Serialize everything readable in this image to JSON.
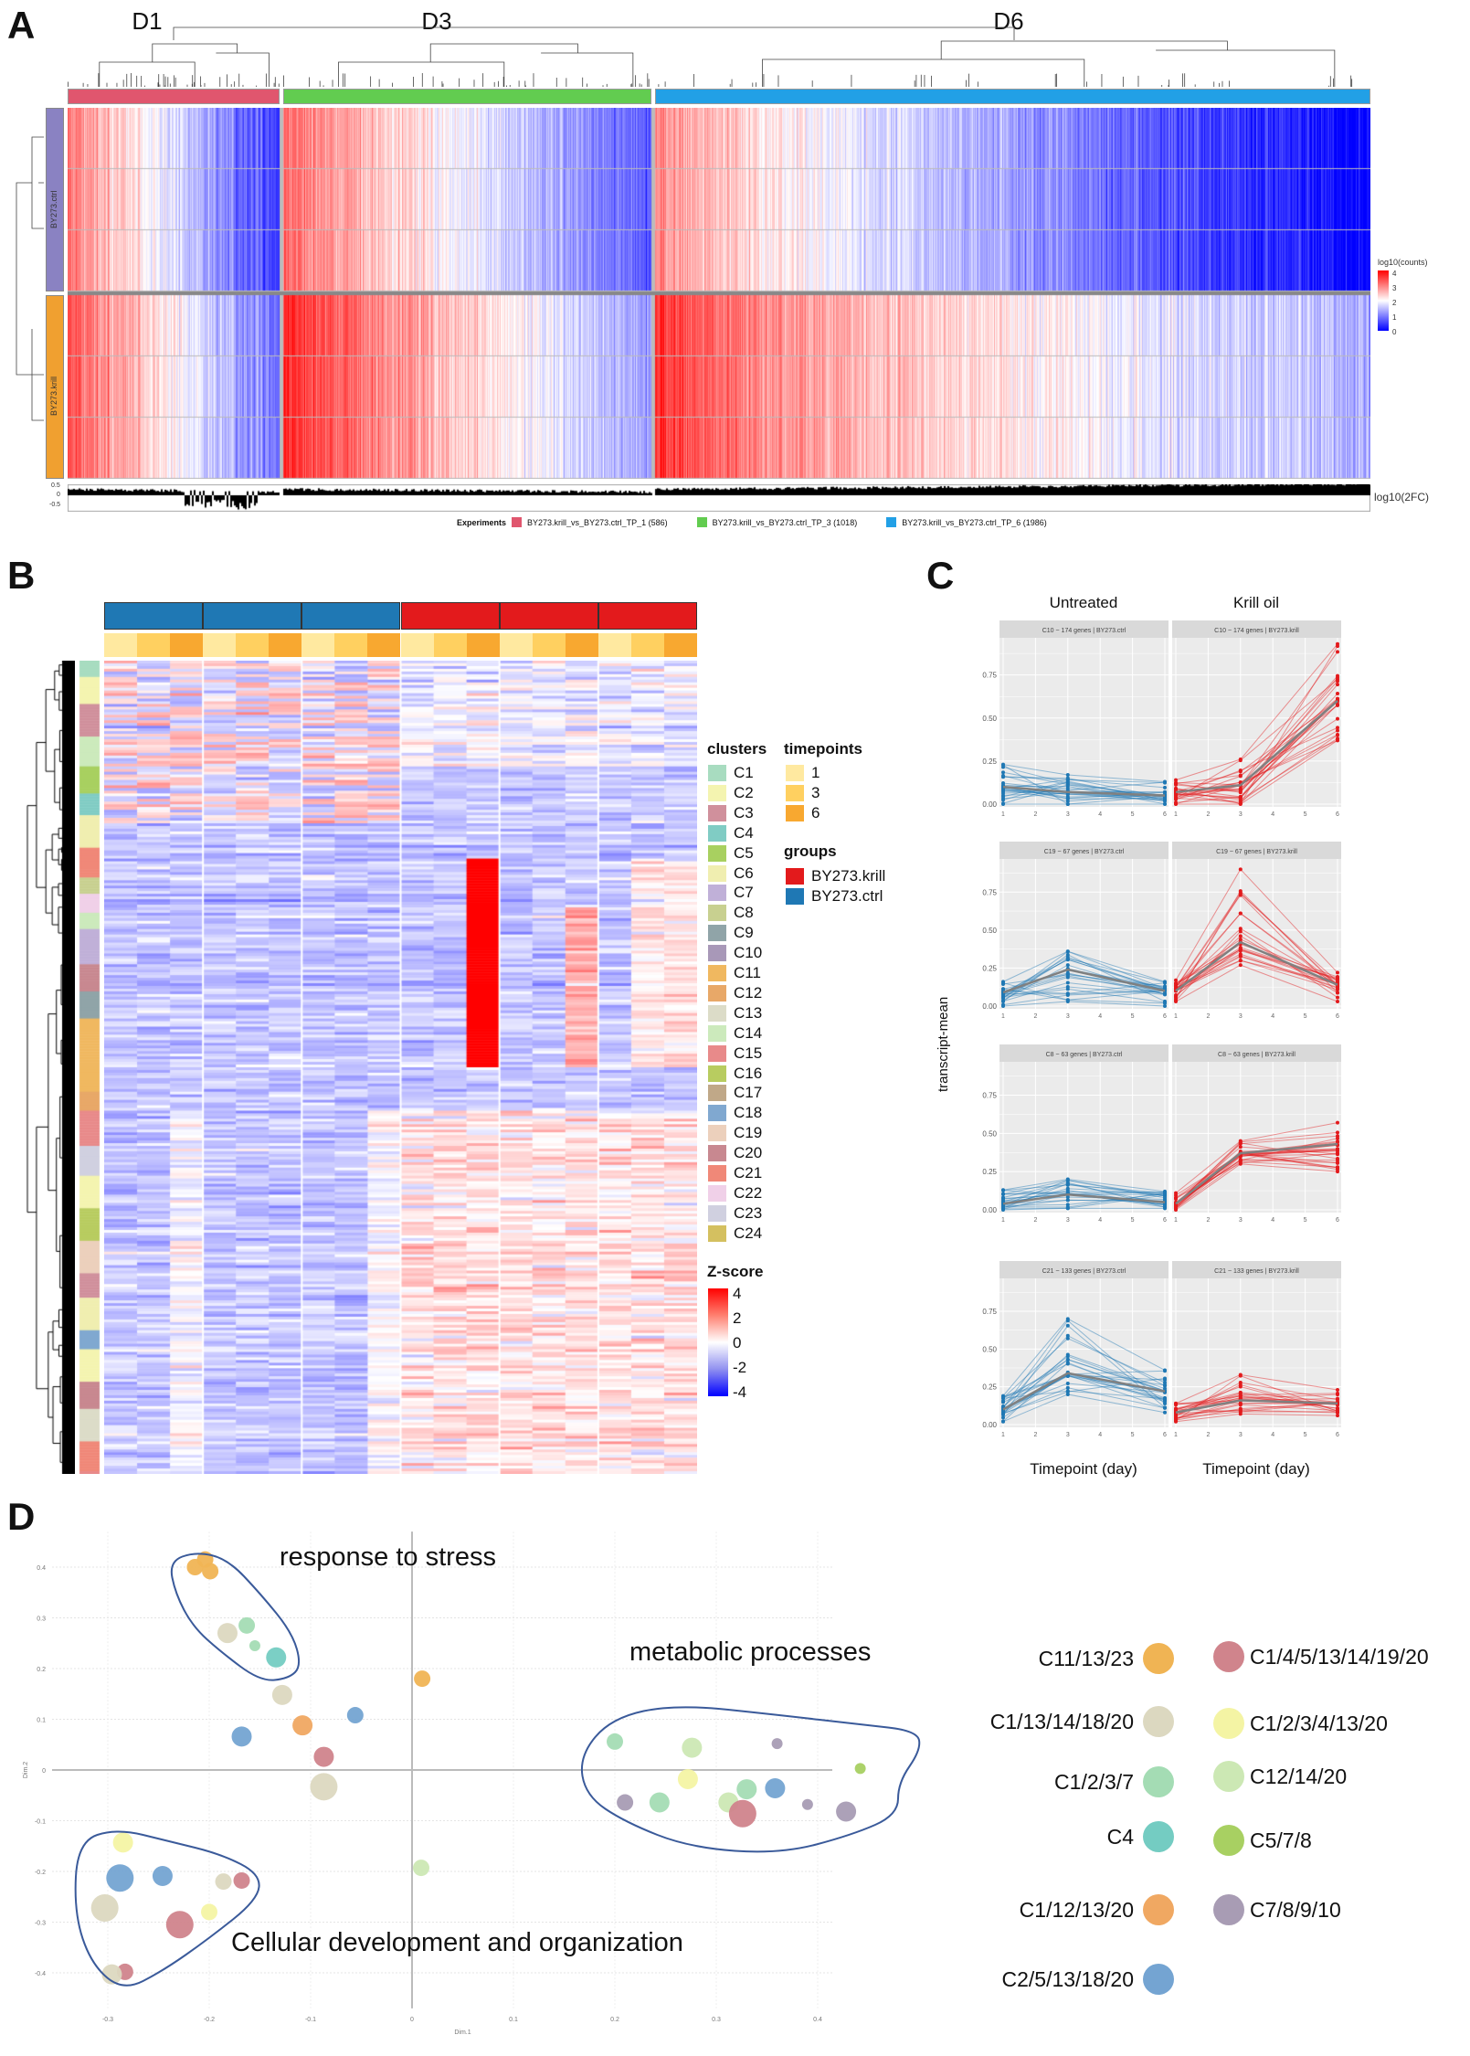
{
  "panel_labels": {
    "a": "A",
    "b": "B",
    "c": "C",
    "d": "D"
  },
  "panelA": {
    "column_groups": [
      {
        "label": "D1",
        "color": "#e0566e"
      },
      {
        "label": "D3",
        "color": "#62cc50"
      },
      {
        "label": "D6",
        "color": "#22a0e6"
      }
    ],
    "row_groups": [
      {
        "label": "BY273.ctrl",
        "color": "#8a82c2"
      },
      {
        "label": "BY273.krill",
        "color": "#f0a030"
      }
    ],
    "colorbar": {
      "title": "log10(counts)",
      "ticks": [
        "4",
        "3",
        "2",
        "1",
        "0"
      ]
    },
    "barplot": {
      "label": "log10(2FC)",
      "ticks": [
        "0.5",
        "0",
        "-0.5"
      ]
    },
    "legend": {
      "title": "Experiments",
      "items": [
        {
          "label": "BY273.krill_vs_BY273.ctrl_TP_1 (586)",
          "color": "#e0566e"
        },
        {
          "label": "BY273.krill_vs_BY273.ctrl_TP_3 (1018)",
          "color": "#62cc50"
        },
        {
          "label": "BY273.krill_vs_BY273.ctrl_TP_6 (1986)",
          "color": "#22a0e6"
        }
      ]
    }
  },
  "panelB": {
    "legend": {
      "clusters_title": "clusters",
      "clusters": [
        {
          "label": "C1",
          "color": "#a8dcc0"
        },
        {
          "label": "C2",
          "color": "#f4f4b0"
        },
        {
          "label": "C3",
          "color": "#d0909c"
        },
        {
          "label": "C4",
          "color": "#80ccc4"
        },
        {
          "label": "C5",
          "color": "#a8d060"
        },
        {
          "label": "C6",
          "color": "#f0eeb0"
        },
        {
          "label": "C7",
          "color": "#c0b0d8"
        },
        {
          "label": "C8",
          "color": "#c8d090"
        },
        {
          "label": "C9",
          "color": "#90a4a8"
        },
        {
          "label": "C10",
          "color": "#a898b8"
        },
        {
          "label": "C11",
          "color": "#f0b860"
        },
        {
          "label": "C12",
          "color": "#e8a868"
        },
        {
          "label": "C13",
          "color": "#dcdcc8"
        },
        {
          "label": "C14",
          "color": "#cceabc"
        },
        {
          "label": "C15",
          "color": "#e88a8a"
        },
        {
          "label": "C16",
          "color": "#b8cc60"
        },
        {
          "label": "C17",
          "color": "#c0a888"
        },
        {
          "label": "C18",
          "color": "#80a8d0"
        },
        {
          "label": "C19",
          "color": "#ecd0bc"
        },
        {
          "label": "C20",
          "color": "#c88890"
        },
        {
          "label": "C21",
          "color": "#f08878"
        },
        {
          "label": "C22",
          "color": "#f0d0e8"
        },
        {
          "label": "C23",
          "color": "#d0d0e0"
        },
        {
          "label": "C24",
          "color": "#d4c060"
        }
      ],
      "timepoints_title": "timepoints",
      "timepoints": [
        {
          "label": "1",
          "color": "#ffe9a0"
        },
        {
          "label": "3",
          "color": "#ffd060"
        },
        {
          "label": "6",
          "color": "#f8a830"
        }
      ],
      "groups_title": "groups",
      "groups": [
        {
          "label": "BY273.krill",
          "color": "#e31a1c"
        },
        {
          "label": "BY273.ctrl",
          "color": "#1f78b4"
        }
      ],
      "zscore_title": "Z-score",
      "zscore_ticks": [
        "4",
        "2",
        "0",
        "-2",
        "-4"
      ]
    }
  },
  "panelC": {
    "col_titles": [
      "Untreated",
      "Krill oil"
    ],
    "ylabel": "transcript-mean",
    "xlabel": "Timepoint (day)",
    "yticks": [
      "0.00",
      "0.25",
      "0.50",
      "0.75"
    ],
    "xticks": [
      "1",
      "2",
      "3",
      "4",
      "5",
      "6"
    ]
  },
  "panelD": {
    "annotations": [
      "response to stress",
      "metabolic processes",
      "Cellular development and organization"
    ],
    "xlabel": "Dim.1",
    "ylabel": "Dim.2",
    "xticks": [
      "-0.3",
      "-0.2",
      "-0.1",
      "0",
      "0.1",
      "0.2",
      "0.3",
      "0.4"
    ],
    "yticks": [
      "0.4",
      "0.3",
      "0.2",
      "0.1",
      "0",
      "-0.1",
      "-0.2",
      "-0.3",
      "-0.4"
    ],
    "legend_left": [
      {
        "label": "C11/13/23",
        "color": "#f0b454"
      },
      {
        "label": "C1/13/14/18/20",
        "color": "#dcd8c0"
      },
      {
        "label": "C1/2/3/7",
        "color": "#a4dcb4"
      },
      {
        "label": "C4",
        "color": "#74ccc2"
      },
      {
        "label": "C1/12/13/20",
        "color": "#f0a862"
      },
      {
        "label": "C2/5/13/18/20",
        "color": "#74a4d2"
      }
    ],
    "legend_right": [
      {
        "label": "C1/4/5/13/14/19/20",
        "color": "#d0848c"
      },
      {
        "label": "C1/2/3/4/13/20",
        "color": "#f4f4a4"
      },
      {
        "label": "C12/14/20",
        "color": "#cce8b4"
      },
      {
        "label": "C5/7/8",
        "color": "#a8d062"
      },
      {
        "label": "C7/8/9/10",
        "color": "#a89cb4"
      }
    ]
  },
  "chart_data": [
    {
      "panel": "A",
      "type": "heatmap",
      "column_groups": [
        {
          "label": "D1",
          "genes": 586
        },
        {
          "label": "D3",
          "genes": 1018
        },
        {
          "label": "D6",
          "genes": 1986
        }
      ],
      "row_groups": [
        "BY273.ctrl",
        "BY273.krill"
      ],
      "replicates_per_group": 3,
      "color_scale": {
        "min": 0,
        "max": 4,
        "low": "#0000ff",
        "mid": "#ffffff",
        "high": "#ff0000"
      },
      "barplot": "log10(2FC)"
    },
    {
      "panel": "B",
      "type": "heatmap",
      "groups": [
        "BY273.ctrl",
        "BY273.ctrl",
        "BY273.ctrl",
        "BY273.krill",
        "BY273.krill",
        "BY273.krill"
      ],
      "timepoints": [
        1,
        3,
        6
      ],
      "clusters": 24,
      "color_scale": {
        "min": -4,
        "max": 4,
        "low": "#0000ff",
        "mid": "#ffffff",
        "high": "#ff0000"
      }
    },
    {
      "panel": "C",
      "type": "line",
      "x": [
        1,
        3,
        6
      ],
      "xlim": [
        1,
        6
      ],
      "ylim": [
        0,
        0.95
      ],
      "facets": [
        {
          "strip": "C10 ~ 174 genes | BY273.ctrl",
          "group": "ctrl",
          "mean": [
            0.1,
            0.07,
            0.05
          ],
          "min": [
            0.0,
            0.0,
            0.0
          ],
          "max": [
            0.23,
            0.17,
            0.13
          ]
        },
        {
          "strip": "C10 ~ 174 genes | BY273.krill",
          "group": "krill",
          "mean": [
            0.07,
            0.11,
            0.6
          ],
          "min": [
            0.0,
            0.0,
            0.37
          ],
          "max": [
            0.14,
            0.26,
            0.93
          ]
        },
        {
          "strip": "C19 ~ 67 genes | BY273.ctrl",
          "group": "ctrl",
          "mean": [
            0.09,
            0.24,
            0.1
          ],
          "min": [
            0.0,
            0.03,
            0.0
          ],
          "max": [
            0.16,
            0.36,
            0.16
          ]
        },
        {
          "strip": "C19 ~ 67 genes | BY273.krill",
          "group": "krill",
          "mean": [
            0.1,
            0.42,
            0.14
          ],
          "min": [
            0.03,
            0.27,
            0.03
          ],
          "max": [
            0.17,
            0.9,
            0.22
          ]
        },
        {
          "strip": "C8 ~ 63 genes | BY273.ctrl",
          "group": "ctrl",
          "mean": [
            0.04,
            0.1,
            0.05
          ],
          "min": [
            0.0,
            0.01,
            0.01
          ],
          "max": [
            0.13,
            0.2,
            0.12
          ]
        },
        {
          "strip": "C8 ~ 63 genes | BY273.krill",
          "group": "krill",
          "mean": [
            0.04,
            0.37,
            0.43
          ],
          "min": [
            0.0,
            0.3,
            0.25
          ],
          "max": [
            0.11,
            0.45,
            0.57
          ]
        },
        {
          "strip": "C21 ~ 133 genes | BY273.ctrl",
          "group": "ctrl",
          "mean": [
            0.1,
            0.34,
            0.22
          ],
          "min": [
            0.02,
            0.2,
            0.08
          ],
          "max": [
            0.19,
            0.7,
            0.36
          ]
        },
        {
          "strip": "C21 ~ 133 genes | BY273.krill",
          "group": "krill",
          "mean": [
            0.08,
            0.16,
            0.14
          ],
          "min": [
            0.02,
            0.07,
            0.06
          ],
          "max": [
            0.14,
            0.33,
            0.23
          ]
        }
      ],
      "colors": {
        "ctrl": "#1f78b4",
        "krill": "#e31a1c",
        "mean": "#808080"
      }
    },
    {
      "panel": "D",
      "type": "scatter",
      "xlabel": "Dim.1",
      "ylabel": "Dim.2",
      "xlim": [
        -0.36,
        0.42
      ],
      "ylim": [
        -0.47,
        0.47
      ],
      "grid": true,
      "points": [
        {
          "x": -0.214,
          "y": 0.4,
          "cat": "C11/13/23",
          "size": 2
        },
        {
          "x": -0.204,
          "y": 0.415,
          "cat": "C11/13/23",
          "size": 2
        },
        {
          "x": -0.199,
          "y": 0.392,
          "cat": "C11/13/23",
          "size": 2
        },
        {
          "x": -0.182,
          "y": 0.27,
          "cat": "C1/13/14/18/20",
          "size": 3
        },
        {
          "x": -0.163,
          "y": 0.285,
          "cat": "C1/2/3/7",
          "size": 2
        },
        {
          "x": -0.155,
          "y": 0.245,
          "cat": "C1/2/3/7",
          "size": 1
        },
        {
          "x": -0.134,
          "y": 0.222,
          "cat": "C4",
          "size": 3
        },
        {
          "x": -0.128,
          "y": 0.148,
          "cat": "C1/13/14/18/20",
          "size": 3
        },
        {
          "x": -0.108,
          "y": 0.088,
          "cat": "C1/12/13/20",
          "size": 3
        },
        {
          "x": -0.168,
          "y": 0.066,
          "cat": "C2/5/13/18/20",
          "size": 3
        },
        {
          "x": -0.056,
          "y": 0.108,
          "cat": "C2/5/13/18/20",
          "size": 2
        },
        {
          "x": -0.087,
          "y": 0.026,
          "cat": "C1/4/5/13/14/19/20",
          "size": 3
        },
        {
          "x": -0.087,
          "y": -0.033,
          "cat": "C1/13/14/18/20",
          "size": 4
        },
        {
          "x": 0.01,
          "y": 0.18,
          "cat": "C11/13/23",
          "size": 2
        },
        {
          "x": 0.009,
          "y": -0.193,
          "cat": "C12/14/20",
          "size": 2
        },
        {
          "x": -0.285,
          "y": -0.143,
          "cat": "C1/2/3/4/13/20",
          "size": 3
        },
        {
          "x": -0.288,
          "y": -0.213,
          "cat": "C2/5/13/18/20",
          "size": 4
        },
        {
          "x": -0.246,
          "y": -0.209,
          "cat": "C2/5/13/18/20",
          "size": 3
        },
        {
          "x": -0.186,
          "y": -0.22,
          "cat": "C1/13/14/18/20",
          "size": 2
        },
        {
          "x": -0.168,
          "y": -0.218,
          "cat": "C1/4/5/13/14/19/20",
          "size": 2
        },
        {
          "x": -0.303,
          "y": -0.272,
          "cat": "C1/13/14/18/20",
          "size": 4
        },
        {
          "x": -0.2,
          "y": -0.28,
          "cat": "C1/2/3/4/13/20",
          "size": 2
        },
        {
          "x": -0.229,
          "y": -0.305,
          "cat": "C1/4/5/13/14/19/20",
          "size": 4
        },
        {
          "x": -0.283,
          "y": -0.398,
          "cat": "C1/4/5/13/14/19/20",
          "size": 2
        },
        {
          "x": -0.296,
          "y": -0.403,
          "cat": "C1/13/14/18/20",
          "size": 3
        },
        {
          "x": 0.2,
          "y": 0.056,
          "cat": "C1/2/3/7",
          "size": 2
        },
        {
          "x": 0.276,
          "y": 0.044,
          "cat": "C12/14/20",
          "size": 3
        },
        {
          "x": 0.36,
          "y": 0.052,
          "cat": "C7/8/9/10",
          "size": 1
        },
        {
          "x": 0.272,
          "y": -0.018,
          "cat": "C1/2/3/4/13/20",
          "size": 3
        },
        {
          "x": 0.442,
          "y": 0.003,
          "cat": "C5/7/8",
          "size": 1
        },
        {
          "x": 0.21,
          "y": -0.064,
          "cat": "C7/8/9/10",
          "size": 2
        },
        {
          "x": 0.244,
          "y": -0.064,
          "cat": "C1/2/3/7",
          "size": 3
        },
        {
          "x": 0.312,
          "y": -0.064,
          "cat": "C12/14/20",
          "size": 3
        },
        {
          "x": 0.33,
          "y": -0.038,
          "cat": "C1/2/3/7",
          "size": 3
        },
        {
          "x": 0.358,
          "y": -0.036,
          "cat": "C2/5/13/18/20",
          "size": 3
        },
        {
          "x": 0.326,
          "y": -0.086,
          "cat": "C1/4/5/13/14/19/20",
          "size": 4
        },
        {
          "x": 0.39,
          "y": -0.068,
          "cat": "C7/8/9/10",
          "size": 1
        },
        {
          "x": 0.428,
          "y": -0.082,
          "cat": "C7/8/9/10",
          "size": 3
        }
      ]
    }
  ]
}
